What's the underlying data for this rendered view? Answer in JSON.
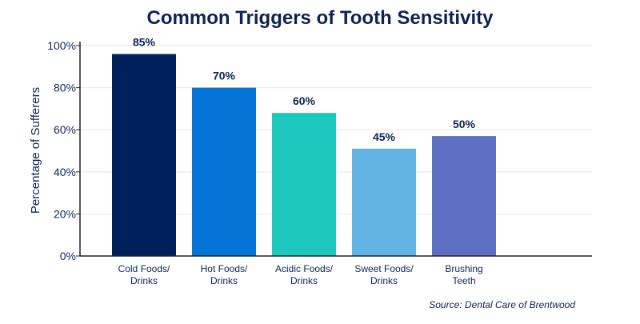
{
  "colors": {
    "title": "#0d2355",
    "text": "#0d2355",
    "axis": "#222222",
    "grid": "#e6e6e6",
    "bars": [
      "#00205b",
      "#0474d6",
      "#1ec8be",
      "#63b4e4",
      "#5f6fc6"
    ]
  },
  "chart_data": {
    "type": "bar",
    "title": "Common Triggers of Tooth Sensitivity",
    "xlabel": "",
    "ylabel": "Percentage of Sufferers",
    "ylim": [
      0,
      100
    ],
    "grid": true,
    "yticks": [
      0,
      20,
      40,
      60,
      80,
      100
    ],
    "ytick_labels": [
      "0%",
      "20%",
      "40%",
      "60%",
      "80%",
      "100%"
    ],
    "categories": [
      [
        "Cold Foods/",
        "Drinks"
      ],
      [
        "Hot Foods/",
        "Drinks"
      ],
      [
        "Acidic Foods/",
        "Drinks"
      ],
      [
        "Sweet Foods/",
        "Drinks"
      ],
      [
        "Brushing",
        "Teeth"
      ]
    ],
    "values": [
      85,
      70,
      60,
      45,
      50
    ],
    "value_labels": [
      "85%",
      "70%",
      "60%",
      "45%",
      "50%"
    ],
    "bar_heights": [
      96,
      80,
      68,
      51,
      57
    ],
    "source": "Source: Dental Care of Brentwood"
  }
}
